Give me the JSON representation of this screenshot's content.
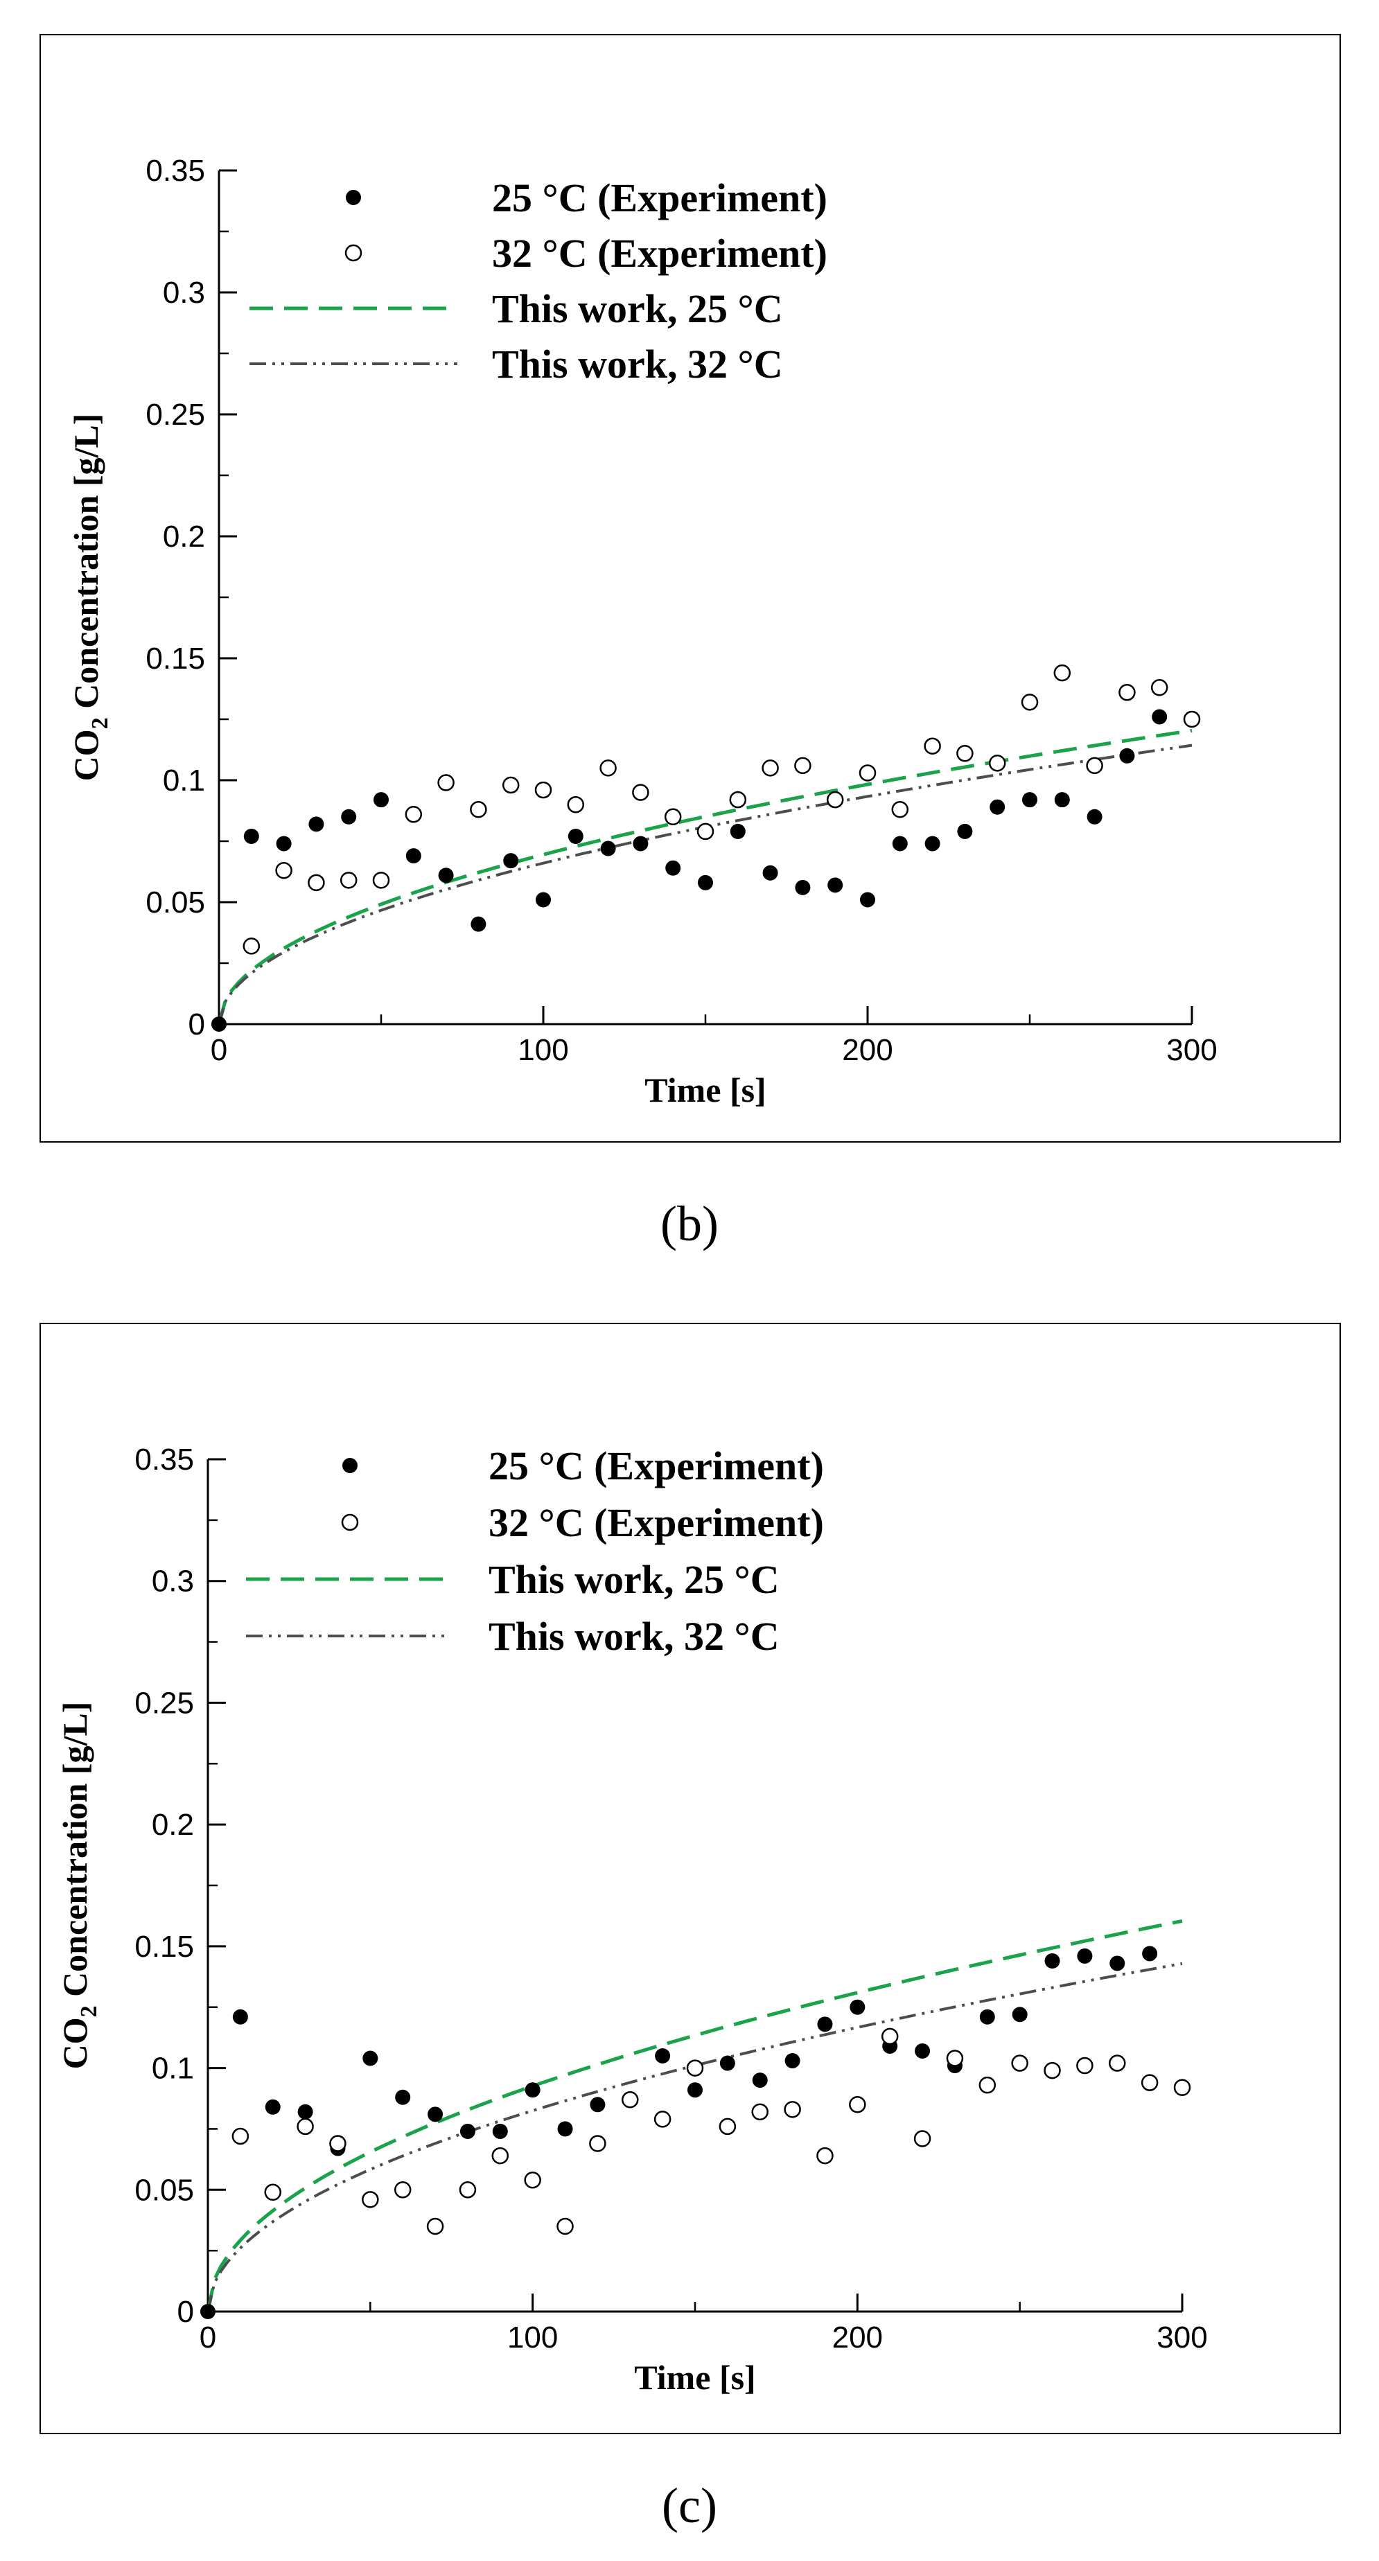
{
  "chart_data": [
    {
      "type": "scatter",
      "panel_label": "(b)",
      "xlabel": "Time [s]",
      "ylabel_main": "CO",
      "ylabel_sub": "2",
      "ylabel_rest": " Concentration [g/L]",
      "xlim": [
        0,
        300
      ],
      "ylim": [
        0,
        0.35
      ],
      "x_ticks": [
        "0",
        "100",
        "200",
        "300"
      ],
      "y_ticks": [
        "0",
        "0.05",
        "0.1",
        "0.15",
        "0.2",
        "0.25",
        "0.3",
        "0.35"
      ],
      "legend": [
        "25 °C (Experiment)",
        "32 °C (Experiment)",
        "This work, 25 °C",
        "This work, 32 °C"
      ],
      "colors": {
        "model_25": "#1aa34a",
        "model_32": "#4d4d4d",
        "points": "#000000"
      },
      "series": [
        {
          "name": "25 °C (Experiment)",
          "kind": "filled",
          "x": [
            0,
            10,
            20,
            30,
            40,
            50,
            60,
            70,
            80,
            90,
            100,
            110,
            120,
            130,
            140,
            150,
            160,
            170,
            180,
            190,
            200,
            210,
            220,
            230,
            240,
            250,
            260,
            270,
            280,
            290
          ],
          "y": [
            0,
            0.077,
            0.074,
            0.082,
            0.085,
            0.092,
            0.069,
            0.061,
            0.041,
            0.067,
            0.051,
            0.077,
            0.072,
            0.074,
            0.064,
            0.058,
            0.079,
            0.062,
            0.056,
            0.057,
            0.051,
            0.074,
            0.074,
            0.079,
            0.089,
            0.092,
            0.092,
            0.085,
            0.11,
            0.126
          ]
        },
        {
          "name": "32 °C (Experiment)",
          "kind": "open",
          "x": [
            10,
            20,
            30,
            40,
            50,
            60,
            70,
            80,
            90,
            100,
            110,
            120,
            130,
            140,
            150,
            160,
            170,
            180,
            190,
            200,
            210,
            220,
            230,
            240,
            250,
            260,
            270,
            280,
            290,
            300
          ],
          "y": [
            0.032,
            0.063,
            0.058,
            0.059,
            0.059,
            0.086,
            0.099,
            0.088,
            0.098,
            0.096,
            0.09,
            0.105,
            0.095,
            0.085,
            0.079,
            0.092,
            0.105,
            0.106,
            0.092,
            0.103,
            0.088,
            0.114,
            0.111,
            0.107,
            0.132,
            0.144,
            0.106,
            0.136,
            0.138,
            0.125
          ]
        },
        {
          "name": "This work, 25 °C",
          "kind": "dashed",
          "model": {
            "a": 0.00695,
            "p": 0.5
          }
        },
        {
          "name": "This work, 32 °C",
          "kind": "dashdot",
          "model": {
            "a": 0.0066,
            "p": 0.5
          }
        }
      ]
    },
    {
      "type": "scatter",
      "panel_label": "(c)",
      "xlabel": "Time [s]",
      "ylabel_main": "CO",
      "ylabel_sub": "2",
      "ylabel_rest": " Concentration [g/L]",
      "xlim": [
        0,
        300
      ],
      "ylim": [
        0,
        0.35
      ],
      "x_ticks": [
        "0",
        "100",
        "200",
        "300"
      ],
      "y_ticks": [
        "0",
        "0.05",
        "0.1",
        "0.15",
        "0.2",
        "0.25",
        "0.3",
        "0.35"
      ],
      "legend": [
        "25 °C (Experiment)",
        "32 °C (Experiment)",
        "This work, 25 °C",
        "This work, 32 °C"
      ],
      "colors": {
        "model_25": "#1aa34a",
        "model_32": "#4d4d4d",
        "points": "#000000"
      },
      "series": [
        {
          "name": "25 °C (Experiment)",
          "kind": "filled",
          "x": [
            0,
            10,
            20,
            30,
            40,
            50,
            60,
            70,
            80,
            90,
            100,
            110,
            120,
            130,
            140,
            150,
            160,
            170,
            180,
            190,
            200,
            210,
            220,
            230,
            240,
            250,
            260,
            270,
            280,
            290
          ],
          "y": [
            0,
            0.121,
            0.084,
            0.082,
            0.067,
            0.104,
            0.088,
            0.081,
            0.074,
            0.074,
            0.091,
            0.075,
            0.085,
            0.087,
            0.105,
            0.091,
            0.102,
            0.095,
            0.103,
            0.118,
            0.125,
            0.109,
            0.107,
            0.101,
            0.121,
            0.122,
            0.144,
            0.146,
            0.143,
            0.147
          ]
        },
        {
          "name": "32 °C (Experiment)",
          "kind": "open",
          "x": [
            10,
            20,
            30,
            40,
            50,
            60,
            70,
            80,
            90,
            100,
            110,
            120,
            130,
            140,
            150,
            160,
            170,
            180,
            190,
            200,
            210,
            220,
            230,
            240,
            250,
            260,
            270,
            280,
            290,
            300
          ],
          "y": [
            0.072,
            0.049,
            0.076,
            0.069,
            0.046,
            0.05,
            0.035,
            0.05,
            0.064,
            0.054,
            0.035,
            0.069,
            0.087,
            0.079,
            0.1,
            0.076,
            0.082,
            0.083,
            0.064,
            0.085,
            0.113,
            0.071,
            0.104,
            0.093,
            0.102,
            0.099,
            0.101,
            0.102,
            0.094,
            0.092
          ]
        },
        {
          "name": "This work, 25 °C",
          "kind": "dashed",
          "model": {
            "a": 0.00926,
            "p": 0.5
          }
        },
        {
          "name": "This work, 32 °C",
          "kind": "dashdot",
          "model": {
            "a": 0.00825,
            "p": 0.5
          }
        }
      ]
    }
  ]
}
